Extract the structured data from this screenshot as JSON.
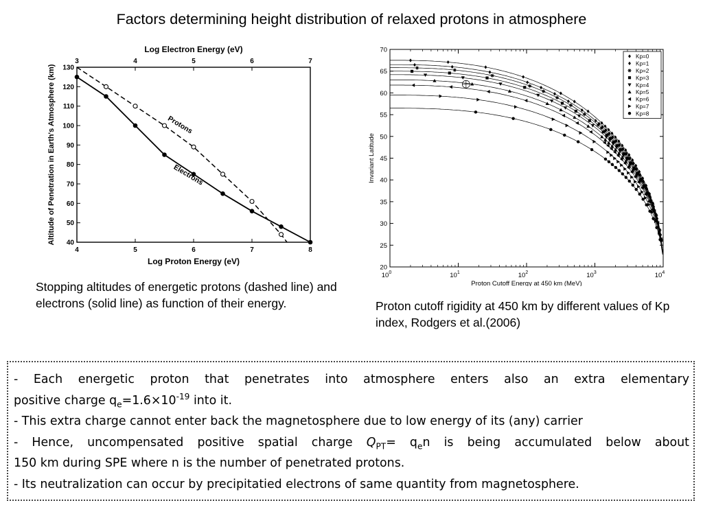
{
  "title": "Factors determining height distribution of relaxed protons in atmosphere",
  "left_caption": "Stopping altitudes of energetic protons (dashed line) and electrons (solid line) as function of their energy.",
  "right_caption": "Proton cutoff rigidity at 450 km by different values of Kp index, Rodgers et al.(2006)",
  "notes": {
    "line1_a": "- Each energetic proton that penetrates into atmosphere enters also an extra elementary",
    "line2_a": "positive charge q",
    "line2_sub": "e",
    "line2_b": "=1.6×10",
    "line2_sup": "-19",
    "line2_c": " into it.",
    "line3": "- This extra charge cannot enter back the magnetosphere due to low energy of its (any) carrier",
    "line4_a": "- Hence, uncompensated positive spatial charge ",
    "line4_q": "Q",
    "line4_qsub": "PT",
    "line4_b": "= q",
    "line4_esub": "e",
    "line4_c": "n is being accumulated below about",
    "line5": "150 km during SPE where n is the number of penetrated protons.",
    "line6": "- Its neutralization can occur by precipitatied electrons of same quantity from magnetosphere."
  },
  "chart_data": [
    {
      "type": "line",
      "title": "",
      "xlabel": "Log Proton Energy (eV)",
      "x2label": "Log Electron Energy (eV)",
      "ylabel": "Altitude of Penetration in Earth's Atmosphere (km)",
      "xlim": [
        4,
        8
      ],
      "x2lim": [
        3,
        7
      ],
      "ylim": [
        40,
        130
      ],
      "xticks": [
        4,
        5,
        6,
        7,
        8
      ],
      "x2ticks": [
        3,
        4,
        5,
        6,
        7
      ],
      "yticks": [
        40,
        50,
        60,
        70,
        80,
        90,
        100,
        110,
        120,
        130
      ],
      "grid": false,
      "series": [
        {
          "name": "Protons",
          "style": "dashed",
          "marker": "open-circle",
          "x": [
            4.5,
            5.0,
            5.5,
            6.0,
            6.5,
            7.0,
            7.5
          ],
          "y": [
            120,
            110,
            100,
            89,
            75,
            61,
            44
          ],
          "line_x": [
            4.0,
            4.5,
            5.0,
            5.5,
            6.0,
            6.5,
            7.0,
            7.5,
            7.6
          ],
          "line_y": [
            130,
            120,
            110,
            100,
            89,
            75,
            61,
            44,
            40
          ]
        },
        {
          "name": "Electrons",
          "style": "solid",
          "marker": "filled-circle",
          "x": [
            4.0,
            4.5,
            5.0,
            5.5,
            6.0,
            6.5,
            7.0,
            7.5,
            8.0
          ],
          "y": [
            125,
            115,
            100,
            85,
            75,
            65,
            56,
            48,
            40
          ]
        }
      ]
    },
    {
      "type": "scatter",
      "title": "",
      "xlabel": "Proton Cutoff Energy at 450 km (MeV)",
      "ylabel": "Invariant Latitude",
      "xscale": "log",
      "xlim": [
        1,
        10000
      ],
      "ylim": [
        20,
        70
      ],
      "yticks": [
        20,
        25,
        30,
        35,
        40,
        45,
        50,
        55,
        60,
        65,
        70
      ],
      "xtick_exponents": [
        0,
        1,
        2,
        3,
        4
      ],
      "grid": false,
      "legend": "top-right",
      "series": [
        {
          "name": "Kp=0",
          "marker": "diamond",
          "y0": 67.5
        },
        {
          "name": "Kp=1",
          "marker": "diamond",
          "y0": 66.5
        },
        {
          "name": "Kp=2",
          "marker": "star",
          "y0": 65.8
        },
        {
          "name": "Kp=3",
          "marker": "square",
          "y0": 65.0
        },
        {
          "name": "Kp=4",
          "marker": "triangle-down",
          "y0": 64.2
        },
        {
          "name": "Kp=5",
          "marker": "triangle-up",
          "y0": 63.0
        },
        {
          "name": "Kp=6",
          "marker": "triangle-left",
          "y0": 61.8
        },
        {
          "name": "Kp=7",
          "marker": "triangle-right",
          "y0": 59.5
        },
        {
          "name": "Kp=8",
          "marker": "circle",
          "y0": 56.5
        }
      ]
    }
  ]
}
